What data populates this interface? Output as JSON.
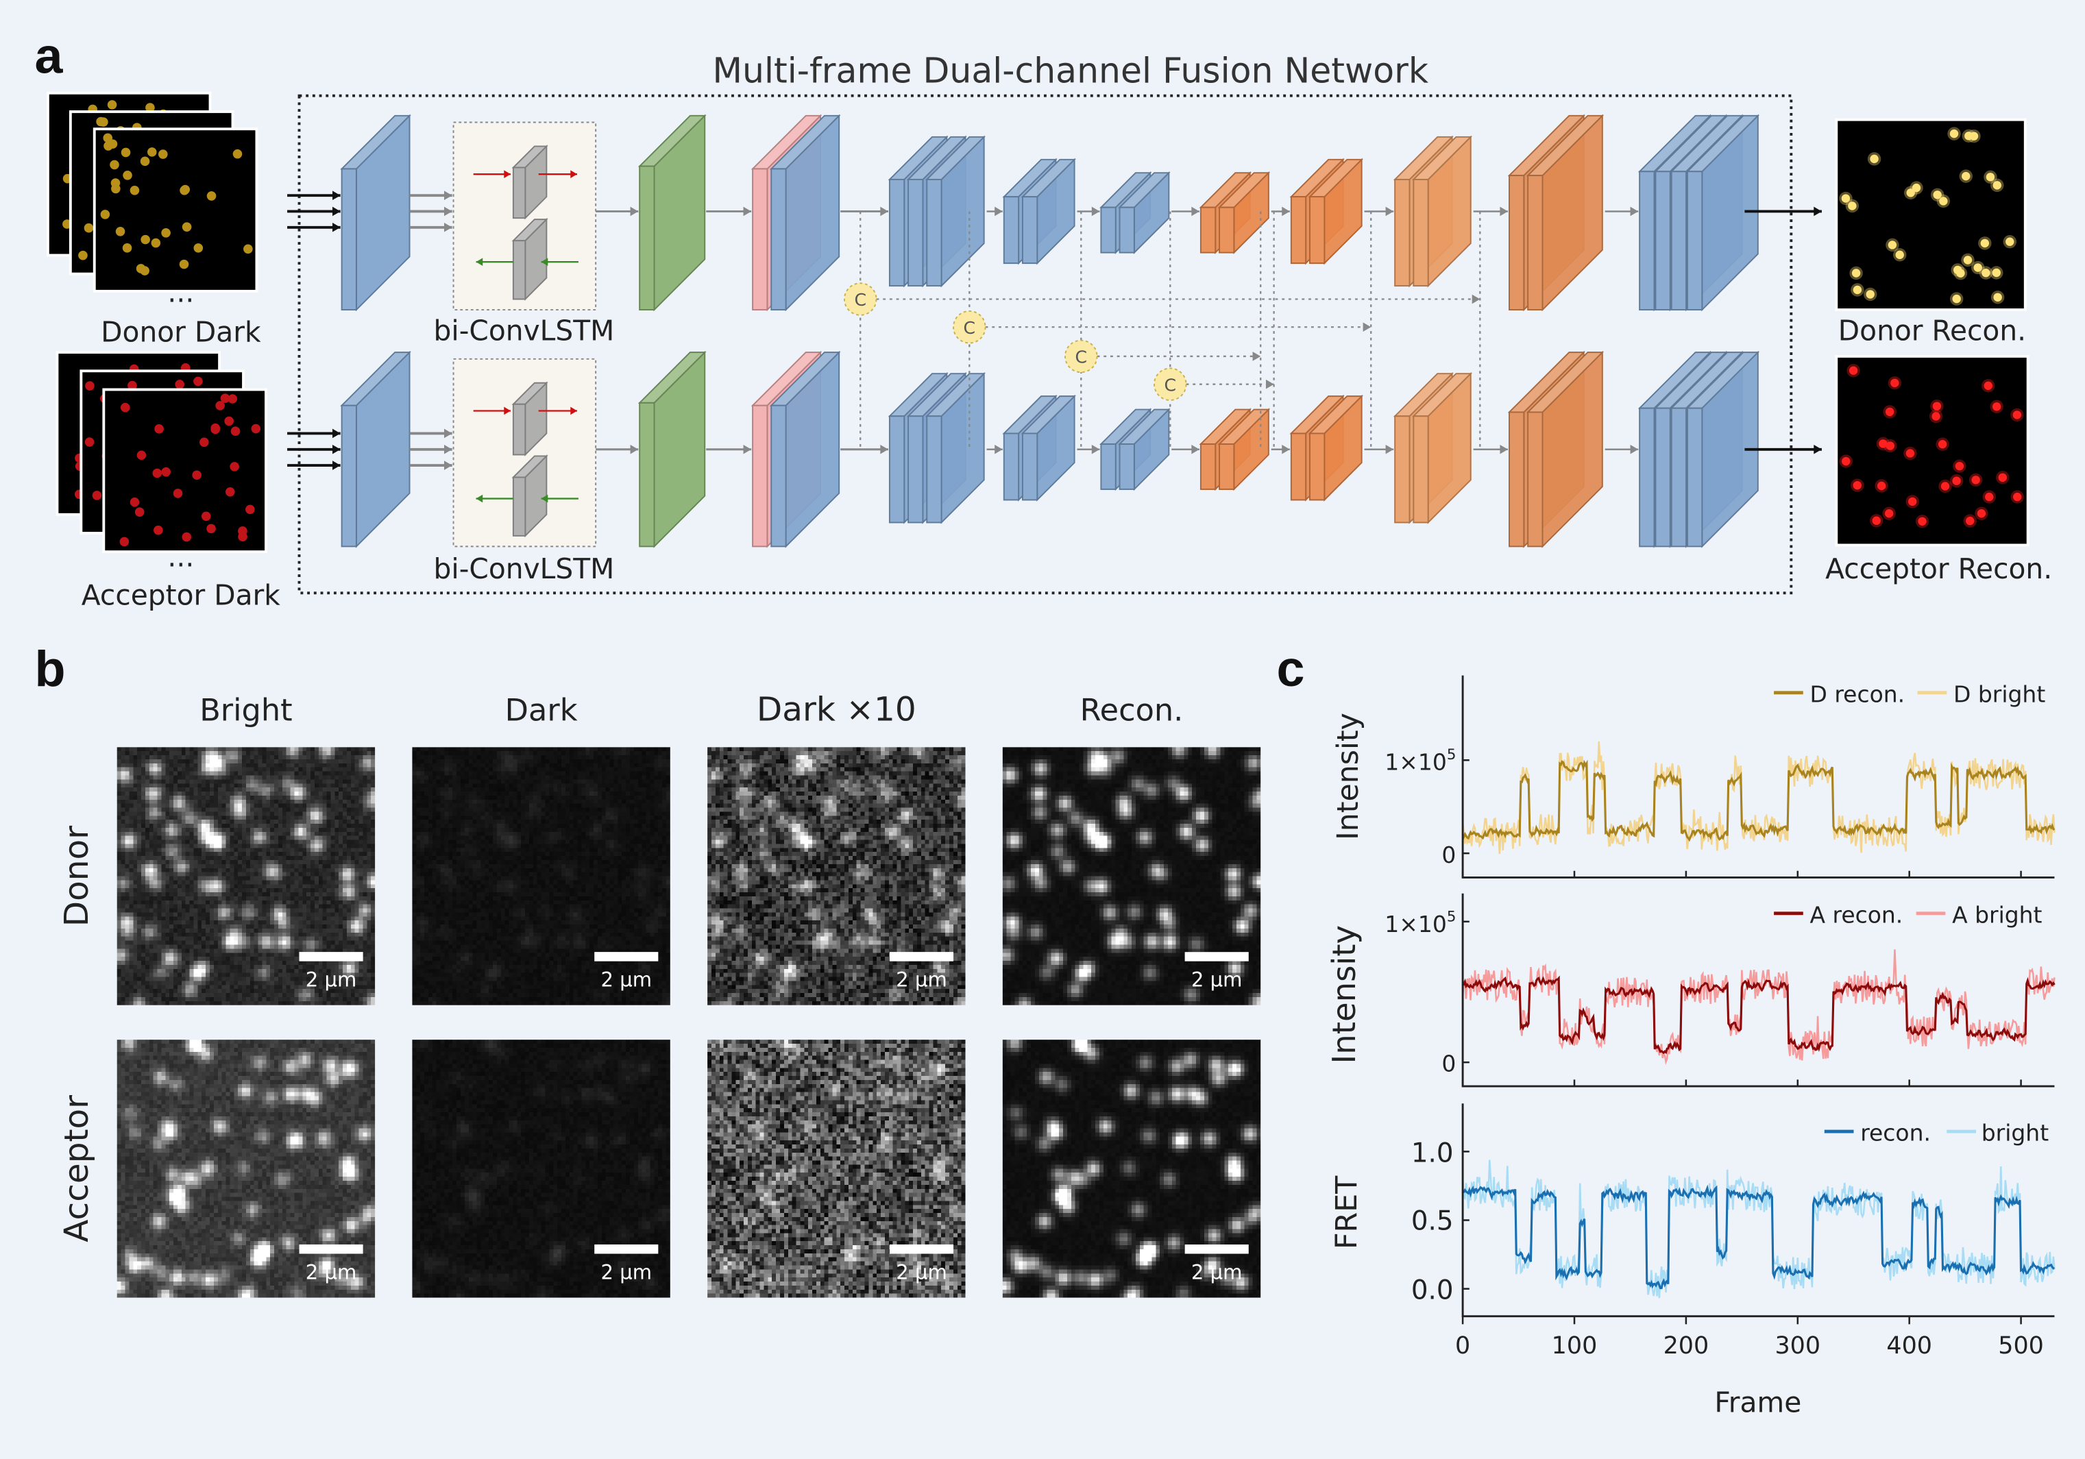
{
  "panel_labels": {
    "a": "a",
    "b": "b",
    "c": "c"
  },
  "panel_a": {
    "title": "Multi-frame Dual-channel Fusion Network",
    "inputs": [
      {
        "label": "Donor Dark",
        "ellipsis": "...",
        "dot_color": "#b8901a"
      },
      {
        "label": "Acceptor Dark",
        "ellipsis": "...",
        "dot_color": "#c0141a"
      }
    ],
    "module_label": "bi-ConvLSTM",
    "concat_symbol": "C",
    "outputs": [
      {
        "label": "Donor Recon.",
        "dot_color": "#ffe27a"
      },
      {
        "label": "Acceptor Recon.",
        "dot_color": "#ff2020"
      }
    ],
    "colors": {
      "encoder": "#7fa3cc",
      "conv": "#88b070",
      "attention": "#f2a9ab",
      "decoder": "#e89a62",
      "concat": "#fbe9a6",
      "forward_arrow": "#d01010",
      "backward_arrow": "#3a8a2a"
    }
  },
  "panel_b": {
    "columns": [
      "Bright",
      "Dark",
      "Dark ×10",
      "Recon."
    ],
    "rows": [
      "Donor",
      "Acceptor"
    ],
    "scale_bar": "2 µm"
  },
  "chart_data": [
    {
      "type": "line",
      "ylabel": "Intensity",
      "yticks": [
        {
          "value": 0,
          "label": "0"
        },
        {
          "value": 100000,
          "label_base": "1×10",
          "label_exp": "5"
        }
      ],
      "ylim": [
        -26000,
        191000
      ],
      "xlim": [
        0,
        530
      ],
      "legend_placement": "top-right",
      "series": [
        {
          "name": "D recon.",
          "color": "#a8831e",
          "segments_frame_start_end_level": [
            [
              0,
              52,
              20000
            ],
            [
              52,
              60,
              80000
            ],
            [
              60,
              87,
              25000
            ],
            [
              87,
              112,
              95000
            ],
            [
              112,
              118,
              35000
            ],
            [
              118,
              128,
              85000
            ],
            [
              128,
              172,
              25000
            ],
            [
              172,
              196,
              80000
            ],
            [
              196,
              238,
              20000
            ],
            [
              238,
              250,
              80000
            ],
            [
              250,
              292,
              25000
            ],
            [
              292,
              332,
              88000
            ],
            [
              332,
              398,
              25000
            ],
            [
              398,
              424,
              85000
            ],
            [
              424,
              438,
              30000
            ],
            [
              438,
              444,
              90000
            ],
            [
              444,
              452,
              35000
            ],
            [
              452,
              505,
              85000
            ],
            [
              505,
              531,
              25000
            ]
          ]
        },
        {
          "name": "D bright",
          "color": "#f3d48f"
        }
      ]
    },
    {
      "type": "line",
      "ylabel": "Intensity",
      "yticks": [
        {
          "value": 0,
          "label": "0"
        },
        {
          "value": 100000,
          "label_base": "1×10",
          "label_exp": "5"
        }
      ],
      "ylim": [
        -17000,
        120000
      ],
      "xlim": [
        0,
        530
      ],
      "legend_placement": "top-right",
      "series": [
        {
          "name": "A recon.",
          "color": "#8b0a0a",
          "segments_frame_start_end_level": [
            [
              0,
              52,
              55000
            ],
            [
              52,
              60,
              28000
            ],
            [
              60,
              87,
              58000
            ],
            [
              87,
              105,
              18000
            ],
            [
              105,
              112,
              35000
            ],
            [
              112,
              118,
              30000
            ],
            [
              118,
              128,
              20000
            ],
            [
              128,
              172,
              50000
            ],
            [
              172,
              196,
              10000
            ],
            [
              196,
              238,
              52000
            ],
            [
              238,
              250,
              25000
            ],
            [
              250,
              292,
              55000
            ],
            [
              292,
              332,
              12000
            ],
            [
              332,
              398,
              52000
            ],
            [
              398,
              424,
              22000
            ],
            [
              424,
              438,
              45000
            ],
            [
              438,
              444,
              28000
            ],
            [
              444,
              452,
              40000
            ],
            [
              452,
              505,
              20000
            ],
            [
              505,
              531,
              55000
            ]
          ]
        },
        {
          "name": "A bright",
          "color": "#f59b9b"
        }
      ]
    },
    {
      "type": "line",
      "ylabel": "FRET",
      "xlabel": "Frame",
      "yticks": [
        {
          "value": 0.0,
          "label": "0.0"
        },
        {
          "value": 0.5,
          "label": "0.5"
        },
        {
          "value": 1.0,
          "label": "1.0"
        }
      ],
      "xticks": [
        {
          "value": 0,
          "label": "0"
        },
        {
          "value": 100,
          "label": "100"
        },
        {
          "value": 200,
          "label": "200"
        },
        {
          "value": 300,
          "label": "300"
        },
        {
          "value": 400,
          "label": "400"
        },
        {
          "value": 500,
          "label": "500"
        }
      ],
      "ylim": [
        -0.2,
        1.35
      ],
      "xlim": [
        0,
        530
      ],
      "legend_placement": "top-right",
      "series": [
        {
          "name": "recon.",
          "color": "#1a6fb0",
          "segments_frame_start_end_level": [
            [
              0,
              48,
              0.7
            ],
            [
              48,
              62,
              0.22
            ],
            [
              62,
              84,
              0.68
            ],
            [
              84,
              105,
              0.12
            ],
            [
              105,
              110,
              0.5
            ],
            [
              110,
              125,
              0.13
            ],
            [
              125,
              165,
              0.68
            ],
            [
              165,
              185,
              0.04
            ],
            [
              185,
              228,
              0.7
            ],
            [
              228,
              237,
              0.25
            ],
            [
              237,
              278,
              0.68
            ],
            [
              278,
              314,
              0.12
            ],
            [
              314,
              376,
              0.65
            ],
            [
              376,
              403,
              0.18
            ],
            [
              403,
              417,
              0.62
            ],
            [
              417,
              424,
              0.2
            ],
            [
              424,
              430,
              0.55
            ],
            [
              430,
              477,
              0.15
            ],
            [
              477,
              500,
              0.65
            ],
            [
              500,
              531,
              0.15
            ]
          ]
        },
        {
          "name": "bright",
          "color": "#a8dcf5"
        }
      ]
    }
  ]
}
